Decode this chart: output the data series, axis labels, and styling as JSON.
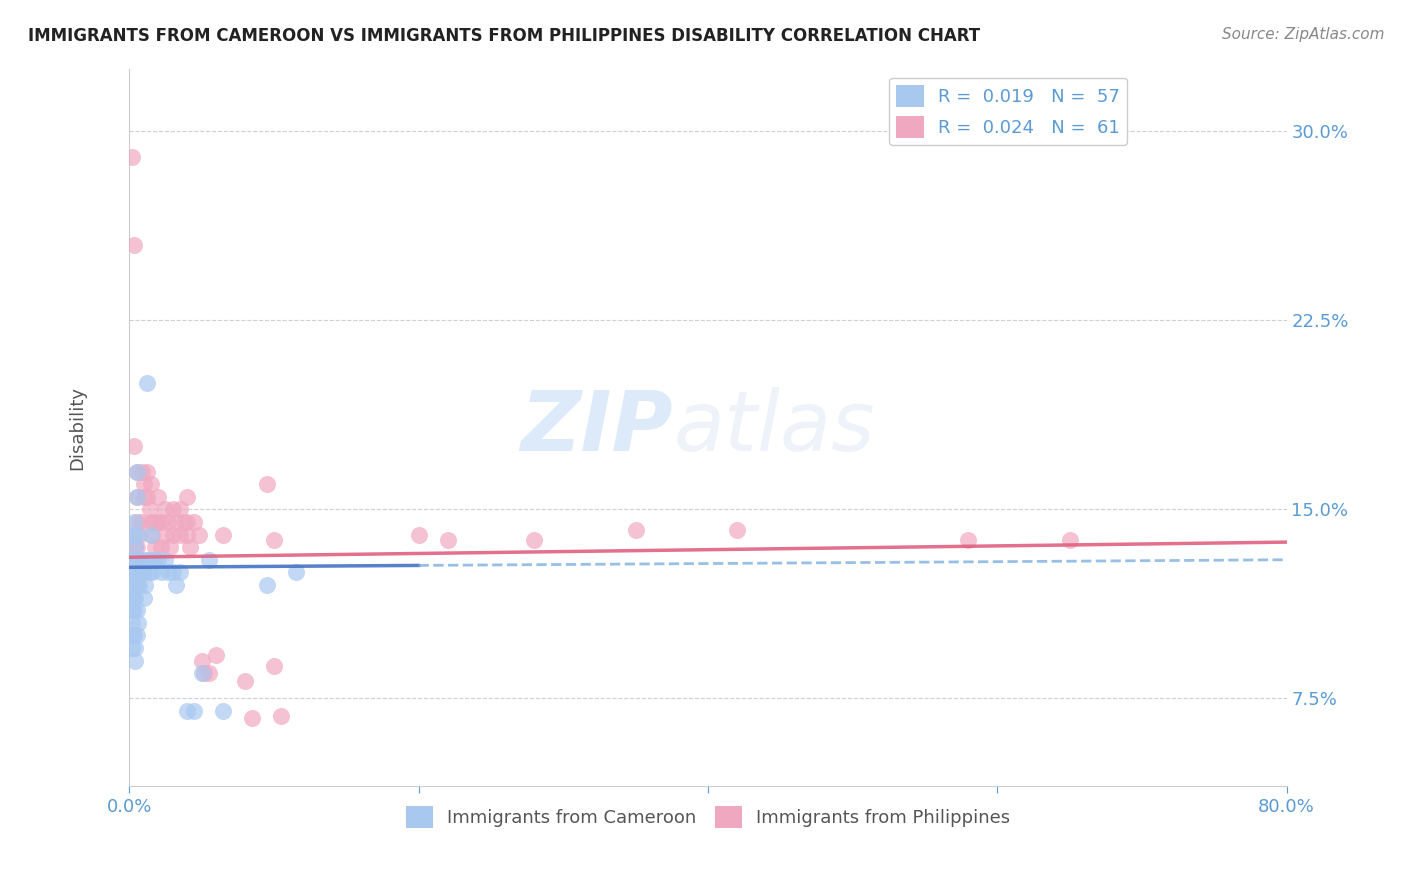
{
  "title": "IMMIGRANTS FROM CAMEROON VS IMMIGRANTS FROM PHILIPPINES DISABILITY CORRELATION CHART",
  "source": "Source: ZipAtlas.com",
  "ylabel": "Disability",
  "ytick_labels": [
    "7.5%",
    "15.0%",
    "22.5%",
    "30.0%"
  ],
  "ytick_values": [
    0.075,
    0.15,
    0.225,
    0.3
  ],
  "xlim": [
    0.0,
    0.8
  ],
  "ylim": [
    0.04,
    0.325
  ],
  "color_blue": "#a8c8f0",
  "color_pink": "#f0a8c0",
  "color_axis_labels": "#5b9bd5",
  "watermark_zip": "ZIP",
  "watermark_atlas": "atlas",
  "cameroon_x": [
    0.002,
    0.002,
    0.002,
    0.002,
    0.002,
    0.002,
    0.002,
    0.002,
    0.003,
    0.003,
    0.003,
    0.003,
    0.003,
    0.003,
    0.003,
    0.004,
    0.004,
    0.004,
    0.004,
    0.004,
    0.005,
    0.005,
    0.005,
    0.005,
    0.005,
    0.005,
    0.005,
    0.006,
    0.006,
    0.007,
    0.008,
    0.009,
    0.01,
    0.01,
    0.01,
    0.011,
    0.012,
    0.013,
    0.014,
    0.015,
    0.015,
    0.016,
    0.018,
    0.02,
    0.022,
    0.025,
    0.027,
    0.03,
    0.032,
    0.035,
    0.04,
    0.045,
    0.05,
    0.055,
    0.065,
    0.095,
    0.115
  ],
  "cameroon_y": [
    0.13,
    0.125,
    0.12,
    0.115,
    0.11,
    0.105,
    0.1,
    0.095,
    0.145,
    0.14,
    0.13,
    0.12,
    0.115,
    0.11,
    0.1,
    0.135,
    0.125,
    0.115,
    0.095,
    0.09,
    0.165,
    0.155,
    0.14,
    0.13,
    0.12,
    0.11,
    0.1,
    0.125,
    0.105,
    0.12,
    0.13,
    0.125,
    0.13,
    0.125,
    0.115,
    0.12,
    0.2,
    0.13,
    0.125,
    0.14,
    0.13,
    0.125,
    0.13,
    0.13,
    0.125,
    0.13,
    0.125,
    0.125,
    0.12,
    0.125,
    0.07,
    0.07,
    0.085,
    0.13,
    0.07,
    0.12,
    0.125
  ],
  "philippines_x": [
    0.002,
    0.003,
    0.003,
    0.003,
    0.004,
    0.004,
    0.005,
    0.005,
    0.005,
    0.005,
    0.007,
    0.008,
    0.009,
    0.01,
    0.01,
    0.012,
    0.012,
    0.014,
    0.015,
    0.015,
    0.016,
    0.017,
    0.018,
    0.02,
    0.02,
    0.022,
    0.022,
    0.025,
    0.025,
    0.027,
    0.028,
    0.03,
    0.03,
    0.032,
    0.035,
    0.035,
    0.038,
    0.04,
    0.04,
    0.04,
    0.042,
    0.045,
    0.048,
    0.05,
    0.052,
    0.055,
    0.06,
    0.065,
    0.08,
    0.085,
    0.095,
    0.1,
    0.1,
    0.105,
    0.2,
    0.22,
    0.28,
    0.35,
    0.42,
    0.58,
    0.65
  ],
  "philippines_y": [
    0.29,
    0.255,
    0.175,
    0.14,
    0.135,
    0.13,
    0.165,
    0.155,
    0.145,
    0.135,
    0.14,
    0.145,
    0.165,
    0.16,
    0.155,
    0.165,
    0.155,
    0.15,
    0.16,
    0.145,
    0.14,
    0.145,
    0.135,
    0.155,
    0.145,
    0.145,
    0.135,
    0.15,
    0.14,
    0.145,
    0.135,
    0.15,
    0.14,
    0.145,
    0.15,
    0.14,
    0.145,
    0.155,
    0.145,
    0.14,
    0.135,
    0.145,
    0.14,
    0.09,
    0.085,
    0.085,
    0.092,
    0.14,
    0.082,
    0.067,
    0.16,
    0.138,
    0.088,
    0.068,
    0.14,
    0.138,
    0.138,
    0.142,
    0.142,
    0.138,
    0.138
  ],
  "cam_line_x0": 0.0,
  "cam_line_x1": 0.8,
  "cam_line_y0": 0.127,
  "cam_line_y1": 0.13,
  "phi_line_x0": 0.0,
  "phi_line_x1": 0.8,
  "phi_line_y0": 0.131,
  "phi_line_y1": 0.137
}
